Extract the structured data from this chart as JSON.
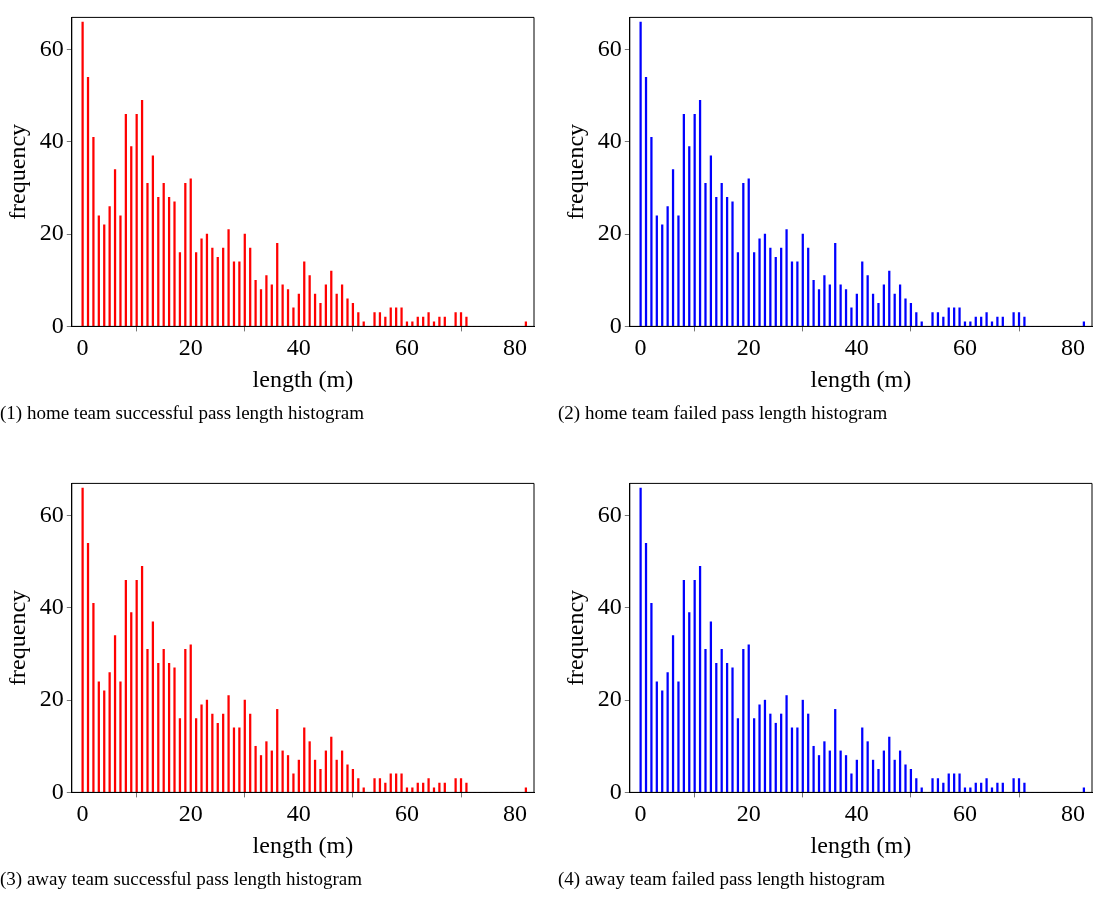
{
  "chart_data": [
    {
      "type": "bar",
      "xlabel": "length (m)",
      "ylabel": "frequency",
      "annotations": [
        "(1)  home team successful pass length histogram"
      ],
      "color": "#ff0000",
      "xlim": [
        -2,
        83.5
      ],
      "xticks": [
        0,
        20,
        40,
        60,
        80
      ],
      "ylim": [
        0,
        67
      ],
      "yticks": [
        0,
        20,
        40,
        60
      ],
      "x": [
        0,
        1,
        2,
        3,
        4,
        5,
        6,
        7,
        8,
        9,
        10,
        11,
        12,
        13,
        14,
        15,
        16,
        17,
        18,
        19,
        20,
        21,
        22,
        23,
        24,
        25,
        26,
        27,
        28,
        29,
        30,
        31,
        32,
        33,
        34,
        35,
        36,
        37,
        38,
        39,
        40,
        41,
        42,
        43,
        44,
        45,
        46,
        47,
        48,
        49,
        50,
        51,
        52,
        53,
        54,
        55,
        56,
        57,
        58,
        59,
        60,
        61,
        62,
        63,
        64,
        65,
        66,
        67,
        68,
        69,
        70,
        71,
        72,
        73,
        74,
        75,
        76,
        77,
        78,
        79,
        80,
        81,
        82
      ],
      "values": [
        66,
        54,
        41,
        24,
        22,
        26,
        34,
        24,
        46,
        39,
        46,
        49,
        31,
        37,
        28,
        31,
        28,
        27,
        16,
        31,
        32,
        16,
        19,
        20,
        17,
        15,
        17,
        21,
        14,
        14,
        20,
        17,
        10,
        8,
        11,
        9,
        18,
        9,
        8,
        4,
        7,
        14,
        11,
        7,
        5,
        9,
        12,
        7,
        9,
        6,
        5,
        3,
        1,
        0,
        3,
        3,
        2,
        4,
        4,
        4,
        1,
        1,
        2,
        2,
        3,
        1,
        2,
        2,
        0,
        3,
        3,
        2,
        0,
        0,
        0,
        0,
        0,
        0,
        0,
        0,
        0,
        0,
        1
      ]
    },
    {
      "type": "bar",
      "xlabel": "length (m)",
      "ylabel": "frequency",
      "annotations": [
        "(2)  home team failed pass length histogram"
      ],
      "color": "#0000ff",
      "xlim": [
        -2,
        83.5
      ],
      "xticks": [
        0,
        20,
        40,
        60,
        80
      ],
      "ylim": [
        0,
        67
      ],
      "yticks": [
        0,
        20,
        40,
        60
      ],
      "x": [
        0,
        1,
        2,
        3,
        4,
        5,
        6,
        7,
        8,
        9,
        10,
        11,
        12,
        13,
        14,
        15,
        16,
        17,
        18,
        19,
        20,
        21,
        22,
        23,
        24,
        25,
        26,
        27,
        28,
        29,
        30,
        31,
        32,
        33,
        34,
        35,
        36,
        37,
        38,
        39,
        40,
        41,
        42,
        43,
        44,
        45,
        46,
        47,
        48,
        49,
        50,
        51,
        52,
        53,
        54,
        55,
        56,
        57,
        58,
        59,
        60,
        61,
        62,
        63,
        64,
        65,
        66,
        67,
        68,
        69,
        70,
        71,
        72,
        73,
        74,
        75,
        76,
        77,
        78,
        79,
        80,
        81,
        82
      ],
      "values": [
        66,
        54,
        41,
        24,
        22,
        26,
        34,
        24,
        46,
        39,
        46,
        49,
        31,
        37,
        28,
        31,
        28,
        27,
        16,
        31,
        32,
        16,
        19,
        20,
        17,
        15,
        17,
        21,
        14,
        14,
        20,
        17,
        10,
        8,
        11,
        9,
        18,
        9,
        8,
        4,
        7,
        14,
        11,
        7,
        5,
        9,
        12,
        7,
        9,
        6,
        5,
        3,
        1,
        0,
        3,
        3,
        2,
        4,
        4,
        4,
        1,
        1,
        2,
        2,
        3,
        1,
        2,
        2,
        0,
        3,
        3,
        2,
        0,
        0,
        0,
        0,
        0,
        0,
        0,
        0,
        0,
        0,
        1
      ]
    },
    {
      "type": "bar",
      "xlabel": "length (m)",
      "ylabel": "frequency",
      "annotations": [
        "(3)  away team successful pass length histogram"
      ],
      "color": "#ff0000",
      "xlim": [
        -2,
        83.5
      ],
      "xticks": [
        0,
        20,
        40,
        60,
        80
      ],
      "ylim": [
        0,
        67
      ],
      "yticks": [
        0,
        20,
        40,
        60
      ],
      "x": [
        0,
        1,
        2,
        3,
        4,
        5,
        6,
        7,
        8,
        9,
        10,
        11,
        12,
        13,
        14,
        15,
        16,
        17,
        18,
        19,
        20,
        21,
        22,
        23,
        24,
        25,
        26,
        27,
        28,
        29,
        30,
        31,
        32,
        33,
        34,
        35,
        36,
        37,
        38,
        39,
        40,
        41,
        42,
        43,
        44,
        45,
        46,
        47,
        48,
        49,
        50,
        51,
        52,
        53,
        54,
        55,
        56,
        57,
        58,
        59,
        60,
        61,
        62,
        63,
        64,
        65,
        66,
        67,
        68,
        69,
        70,
        71,
        72,
        73,
        74,
        75,
        76,
        77,
        78,
        79,
        80,
        81,
        82
      ],
      "values": [
        66,
        54,
        41,
        24,
        22,
        26,
        34,
        24,
        46,
        39,
        46,
        49,
        31,
        37,
        28,
        31,
        28,
        27,
        16,
        31,
        32,
        16,
        19,
        20,
        17,
        15,
        17,
        21,
        14,
        14,
        20,
        17,
        10,
        8,
        11,
        9,
        18,
        9,
        8,
        4,
        7,
        14,
        11,
        7,
        5,
        9,
        12,
        7,
        9,
        6,
        5,
        3,
        1,
        0,
        3,
        3,
        2,
        4,
        4,
        4,
        1,
        1,
        2,
        2,
        3,
        1,
        2,
        2,
        0,
        3,
        3,
        2,
        0,
        0,
        0,
        0,
        0,
        0,
        0,
        0,
        0,
        0,
        1
      ]
    },
    {
      "type": "bar",
      "xlabel": "length (m)",
      "ylabel": "frequency",
      "annotations": [
        "(4)  away team failed pass length histogram"
      ],
      "color": "#0000ff",
      "xlim": [
        -2,
        83.5
      ],
      "xticks": [
        0,
        20,
        40,
        60,
        80
      ],
      "ylim": [
        0,
        67
      ],
      "yticks": [
        0,
        20,
        40,
        60
      ],
      "x": [
        0,
        1,
        2,
        3,
        4,
        5,
        6,
        7,
        8,
        9,
        10,
        11,
        12,
        13,
        14,
        15,
        16,
        17,
        18,
        19,
        20,
        21,
        22,
        23,
        24,
        25,
        26,
        27,
        28,
        29,
        30,
        31,
        32,
        33,
        34,
        35,
        36,
        37,
        38,
        39,
        40,
        41,
        42,
        43,
        44,
        45,
        46,
        47,
        48,
        49,
        50,
        51,
        52,
        53,
        54,
        55,
        56,
        57,
        58,
        59,
        60,
        61,
        62,
        63,
        64,
        65,
        66,
        67,
        68,
        69,
        70,
        71,
        72,
        73,
        74,
        75,
        76,
        77,
        78,
        79,
        80,
        81,
        82
      ],
      "values": [
        66,
        54,
        41,
        24,
        22,
        26,
        34,
        24,
        46,
        39,
        46,
        49,
        31,
        37,
        28,
        31,
        28,
        27,
        16,
        31,
        32,
        16,
        19,
        20,
        17,
        15,
        17,
        21,
        14,
        14,
        20,
        17,
        10,
        8,
        11,
        9,
        18,
        9,
        8,
        4,
        7,
        14,
        11,
        7,
        5,
        9,
        12,
        7,
        9,
        6,
        5,
        3,
        1,
        0,
        3,
        3,
        2,
        4,
        4,
        4,
        1,
        1,
        2,
        2,
        3,
        1,
        2,
        2,
        0,
        3,
        3,
        2,
        0,
        0,
        0,
        0,
        0,
        0,
        0,
        0,
        0,
        0,
        1
      ]
    }
  ]
}
